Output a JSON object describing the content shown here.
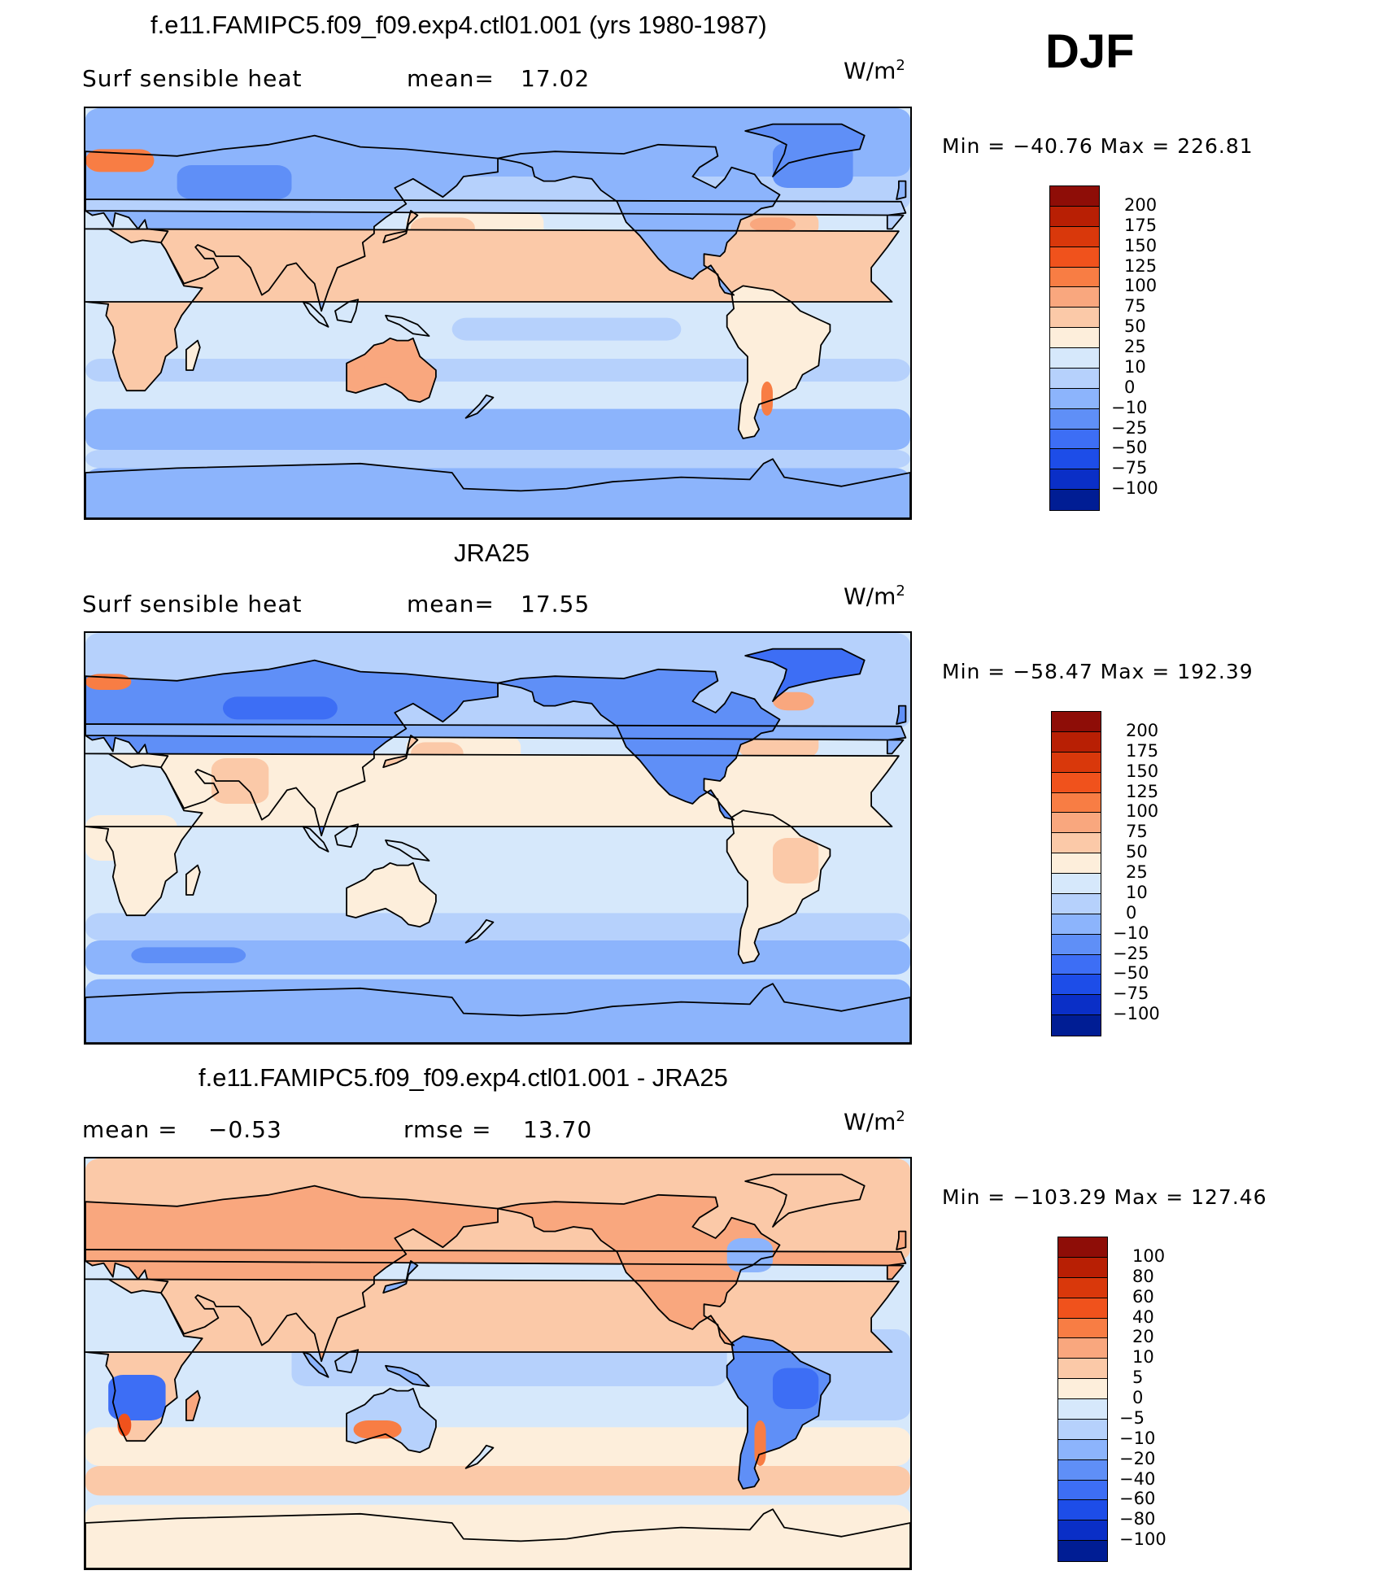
{
  "season": "DJF",
  "panels": [
    {
      "title": "f.e11.FAMIPC5.f09_f09.exp4.ctl01.001 (yrs 1980-1987)",
      "left_label": "Surf sensible heat",
      "center_label": "mean=",
      "center_value": "17.02",
      "units": "W/m",
      "units_exp": "2",
      "minmax": "Min = −40.76 Max = 226.81",
      "theme": "model",
      "colorbar": {
        "labels": [
          "200",
          "175",
          "150",
          "125",
          "100",
          "75",
          "50",
          "25",
          "10",
          "0",
          "−10",
          "−25",
          "−50",
          "−75",
          "−100"
        ],
        "colors": [
          "#8e0d07",
          "#b81f04",
          "#d9380b",
          "#f0521c",
          "#f87d44",
          "#f9a77e",
          "#fbc9a8",
          "#fdeedb",
          "#d6e8fb",
          "#b6d1fc",
          "#8cb4fc",
          "#5f8ff7",
          "#3d6ef5",
          "#1d4de8",
          "#0a2fc7",
          "#001d94"
        ]
      }
    },
    {
      "title": "JRA25",
      "left_label": "Surf sensible heat",
      "center_label": "mean=",
      "center_value": "17.55",
      "units": "W/m",
      "units_exp": "2",
      "minmax": "Min = −58.47 Max = 192.39",
      "theme": "obs",
      "colorbar": {
        "labels": [
          "200",
          "175",
          "150",
          "125",
          "100",
          "75",
          "50",
          "25",
          "10",
          "0",
          "−10",
          "−25",
          "−50",
          "−75",
          "−100"
        ],
        "colors": [
          "#8e0d07",
          "#b81f04",
          "#d9380b",
          "#f0521c",
          "#f87d44",
          "#f9a77e",
          "#fbc9a8",
          "#fdeedb",
          "#d6e8fb",
          "#b6d1fc",
          "#8cb4fc",
          "#5f8ff7",
          "#3d6ef5",
          "#1d4de8",
          "#0a2fc7",
          "#001d94"
        ]
      }
    },
    {
      "title": "f.e11.FAMIPC5.f09_f09.exp4.ctl01.001 - JRA25",
      "left_label": "mean =",
      "left_value": "−0.53",
      "center_label": "rmse =",
      "center_value": "13.70",
      "units": "W/m",
      "units_exp": "2",
      "minmax": "Min = −103.29 Max = 127.46",
      "theme": "diff",
      "colorbar": {
        "labels": [
          "100",
          "80",
          "60",
          "40",
          "20",
          "10",
          "5",
          "0",
          "−5",
          "−10",
          "−20",
          "−40",
          "−60",
          "−80",
          "−100"
        ],
        "colors": [
          "#8e0d07",
          "#b81f04",
          "#d9380b",
          "#f0521c",
          "#f87d44",
          "#f9a77e",
          "#fbc9a8",
          "#fdeedb",
          "#d6e8fb",
          "#b6d1fc",
          "#8cb4fc",
          "#5f8ff7",
          "#3d6ef5",
          "#1d4de8",
          "#0a2fc7",
          "#001d94"
        ]
      }
    }
  ]
}
